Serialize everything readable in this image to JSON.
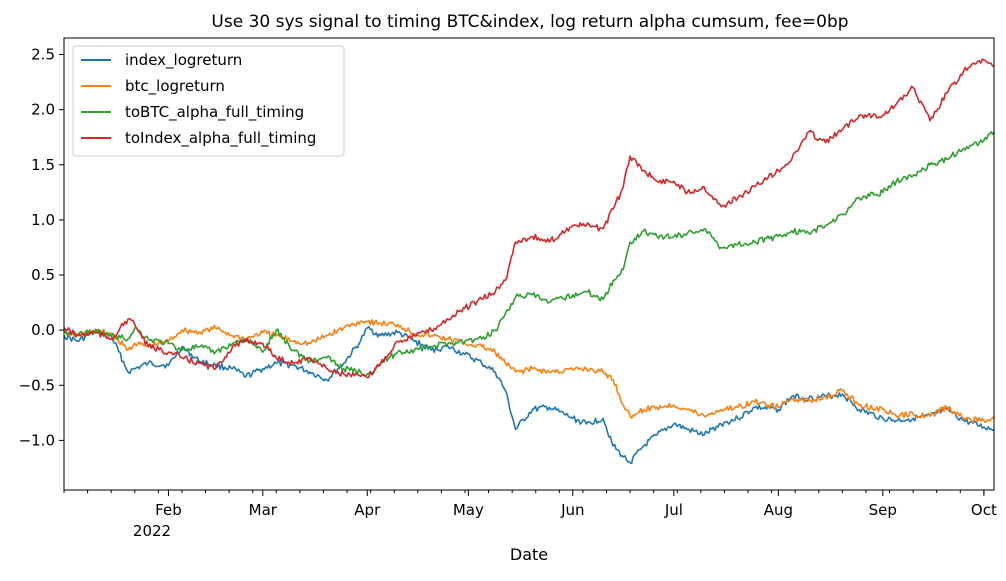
{
  "chart_data": {
    "type": "line",
    "title": "Use 30 sys signal to timing BTC&index, log return alpha cumsum, fee=0bp",
    "xlabel": "Date",
    "ylabel": "",
    "xlim": [
      "2022-01-01",
      "2022-10-04"
    ],
    "ylim": [
      -1.45,
      2.65
    ],
    "yticks": [
      -1.0,
      -0.5,
      0.0,
      0.5,
      1.0,
      1.5,
      2.0,
      2.5
    ],
    "ytick_labels": [
      "−1.0",
      "−0.5",
      "0.0",
      "0.5",
      "1.0",
      "1.5",
      "2.0",
      "2.5"
    ],
    "xticks": [
      "2022-02-01",
      "2022-03-01",
      "2022-04-01",
      "2022-05-01",
      "2022-06-01",
      "2022-07-01",
      "2022-08-01",
      "2022-09-01",
      "2022-10-01"
    ],
    "xtick_labels": [
      "Feb",
      "Mar",
      "Apr",
      "May",
      "Jun",
      "Jul",
      "Aug",
      "Sep",
      "Oct"
    ],
    "xtick_year_label": "2022",
    "legend_position": "upper-left",
    "grid": false,
    "series": [
      {
        "name": "index_logreturn",
        "color": "#1f77b4",
        "x": [
          "2022-01-01",
          "2022-01-05",
          "2022-01-10",
          "2022-01-15",
          "2022-01-20",
          "2022-01-22",
          "2022-01-26",
          "2022-02-01",
          "2022-02-05",
          "2022-02-10",
          "2022-02-15",
          "2022-02-20",
          "2022-02-24",
          "2022-03-01",
          "2022-03-05",
          "2022-03-10",
          "2022-03-15",
          "2022-03-20",
          "2022-03-25",
          "2022-03-30",
          "2022-04-01",
          "2022-04-05",
          "2022-04-10",
          "2022-04-15",
          "2022-04-20",
          "2022-04-25",
          "2022-04-30",
          "2022-05-05",
          "2022-05-09",
          "2022-05-12",
          "2022-05-15",
          "2022-05-20",
          "2022-05-25",
          "2022-06-01",
          "2022-06-05",
          "2022-06-10",
          "2022-06-13",
          "2022-06-16",
          "2022-06-18",
          "2022-06-22",
          "2022-06-26",
          "2022-07-01",
          "2022-07-05",
          "2022-07-10",
          "2022-07-15",
          "2022-07-20",
          "2022-07-25",
          "2022-08-01",
          "2022-08-05",
          "2022-08-10",
          "2022-08-15",
          "2022-08-20",
          "2022-08-25",
          "2022-09-01",
          "2022-09-05",
          "2022-09-10",
          "2022-09-15",
          "2022-09-20",
          "2022-09-25",
          "2022-10-01",
          "2022-10-04"
        ],
        "values": [
          -0.05,
          -0.1,
          -0.02,
          -0.05,
          -0.38,
          -0.35,
          -0.3,
          -0.32,
          -0.15,
          -0.28,
          -0.32,
          -0.35,
          -0.42,
          -0.35,
          -0.3,
          -0.32,
          -0.38,
          -0.45,
          -0.3,
          -0.1,
          0.02,
          -0.05,
          -0.02,
          -0.1,
          -0.18,
          -0.15,
          -0.22,
          -0.3,
          -0.38,
          -0.55,
          -0.9,
          -0.72,
          -0.7,
          -0.8,
          -0.85,
          -0.8,
          -1.05,
          -1.15,
          -1.2,
          -1.05,
          -0.95,
          -0.85,
          -0.9,
          -0.95,
          -0.85,
          -0.8,
          -0.7,
          -0.72,
          -0.6,
          -0.62,
          -0.6,
          -0.58,
          -0.72,
          -0.8,
          -0.82,
          -0.8,
          -0.78,
          -0.72,
          -0.82,
          -0.88,
          -0.9
        ]
      },
      {
        "name": "btc_logreturn",
        "color": "#ff7f0e",
        "x": [
          "2022-01-01",
          "2022-01-05",
          "2022-01-10",
          "2022-01-15",
          "2022-01-20",
          "2022-01-22",
          "2022-01-26",
          "2022-02-01",
          "2022-02-05",
          "2022-02-10",
          "2022-02-15",
          "2022-02-20",
          "2022-02-24",
          "2022-03-01",
          "2022-03-05",
          "2022-03-10",
          "2022-03-15",
          "2022-03-20",
          "2022-03-25",
          "2022-03-30",
          "2022-04-01",
          "2022-04-05",
          "2022-04-10",
          "2022-04-15",
          "2022-04-20",
          "2022-04-25",
          "2022-04-30",
          "2022-05-05",
          "2022-05-09",
          "2022-05-12",
          "2022-05-15",
          "2022-05-20",
          "2022-05-25",
          "2022-06-01",
          "2022-06-05",
          "2022-06-10",
          "2022-06-13",
          "2022-06-16",
          "2022-06-18",
          "2022-06-22",
          "2022-06-26",
          "2022-07-01",
          "2022-07-05",
          "2022-07-10",
          "2022-07-15",
          "2022-07-20",
          "2022-07-25",
          "2022-08-01",
          "2022-08-05",
          "2022-08-10",
          "2022-08-15",
          "2022-08-20",
          "2022-08-25",
          "2022-09-01",
          "2022-09-05",
          "2022-09-10",
          "2022-09-15",
          "2022-09-20",
          "2022-09-25",
          "2022-10-01",
          "2022-10-04"
        ],
        "values": [
          -0.02,
          -0.05,
          -0.01,
          -0.03,
          -0.18,
          -0.12,
          -0.15,
          -0.1,
          0.0,
          -0.02,
          0.02,
          -0.05,
          -0.08,
          -0.02,
          -0.05,
          -0.1,
          -0.12,
          -0.05,
          0.02,
          0.08,
          0.08,
          0.06,
          0.05,
          -0.03,
          -0.05,
          -0.08,
          -0.12,
          -0.15,
          -0.2,
          -0.3,
          -0.38,
          -0.35,
          -0.38,
          -0.36,
          -0.35,
          -0.38,
          -0.45,
          -0.68,
          -0.78,
          -0.72,
          -0.7,
          -0.68,
          -0.72,
          -0.78,
          -0.72,
          -0.7,
          -0.65,
          -0.7,
          -0.62,
          -0.64,
          -0.6,
          -0.55,
          -0.68,
          -0.72,
          -0.78,
          -0.76,
          -0.78,
          -0.7,
          -0.8,
          -0.82,
          -0.78
        ]
      },
      {
        "name": "toBTC_alpha_full_timing",
        "color": "#2ca02c",
        "x": [
          "2022-01-01",
          "2022-01-05",
          "2022-01-10",
          "2022-01-15",
          "2022-01-20",
          "2022-01-22",
          "2022-01-26",
          "2022-02-01",
          "2022-02-05",
          "2022-02-10",
          "2022-02-15",
          "2022-02-20",
          "2022-02-24",
          "2022-03-01",
          "2022-03-05",
          "2022-03-10",
          "2022-03-15",
          "2022-03-20",
          "2022-03-25",
          "2022-03-30",
          "2022-04-01",
          "2022-04-05",
          "2022-04-10",
          "2022-04-15",
          "2022-04-20",
          "2022-04-25",
          "2022-04-30",
          "2022-05-05",
          "2022-05-09",
          "2022-05-12",
          "2022-05-15",
          "2022-05-20",
          "2022-05-25",
          "2022-06-01",
          "2022-06-05",
          "2022-06-10",
          "2022-06-13",
          "2022-06-16",
          "2022-06-18",
          "2022-06-22",
          "2022-06-26",
          "2022-07-01",
          "2022-07-05",
          "2022-07-10",
          "2022-07-15",
          "2022-07-20",
          "2022-07-25",
          "2022-08-01",
          "2022-08-05",
          "2022-08-10",
          "2022-08-15",
          "2022-08-20",
          "2022-08-25",
          "2022-09-01",
          "2022-09-05",
          "2022-09-10",
          "2022-09-15",
          "2022-09-20",
          "2022-09-25",
          "2022-10-01",
          "2022-10-04"
        ],
        "values": [
          -0.02,
          -0.04,
          -0.01,
          -0.05,
          -0.08,
          0.02,
          -0.08,
          -0.12,
          -0.18,
          -0.15,
          -0.2,
          -0.12,
          -0.08,
          -0.2,
          0.0,
          -0.18,
          -0.28,
          -0.25,
          -0.35,
          -0.38,
          -0.4,
          -0.3,
          -0.2,
          -0.18,
          -0.15,
          -0.12,
          -0.1,
          -0.08,
          0.0,
          0.15,
          0.3,
          0.32,
          0.25,
          0.32,
          0.35,
          0.28,
          0.45,
          0.55,
          0.8,
          0.9,
          0.85,
          0.85,
          0.88,
          0.92,
          0.75,
          0.78,
          0.8,
          0.85,
          0.9,
          0.88,
          0.95,
          1.05,
          1.2,
          1.25,
          1.35,
          1.4,
          1.5,
          1.55,
          1.65,
          1.72,
          1.8
        ]
      },
      {
        "name": "toIndex_alpha_full_timing",
        "color": "#d62728",
        "x": [
          "2022-01-01",
          "2022-01-05",
          "2022-01-10",
          "2022-01-15",
          "2022-01-20",
          "2022-01-22",
          "2022-01-26",
          "2022-02-01",
          "2022-02-05",
          "2022-02-10",
          "2022-02-15",
          "2022-02-20",
          "2022-02-24",
          "2022-03-01",
          "2022-03-05",
          "2022-03-10",
          "2022-03-15",
          "2022-03-20",
          "2022-03-25",
          "2022-03-30",
          "2022-04-01",
          "2022-04-05",
          "2022-04-10",
          "2022-04-15",
          "2022-04-20",
          "2022-04-25",
          "2022-04-30",
          "2022-05-05",
          "2022-05-09",
          "2022-05-12",
          "2022-05-15",
          "2022-05-20",
          "2022-05-25",
          "2022-06-01",
          "2022-06-05",
          "2022-06-10",
          "2022-06-13",
          "2022-06-16",
          "2022-06-18",
          "2022-06-22",
          "2022-06-26",
          "2022-07-01",
          "2022-07-05",
          "2022-07-10",
          "2022-07-15",
          "2022-07-20",
          "2022-07-25",
          "2022-08-01",
          "2022-08-05",
          "2022-08-10",
          "2022-08-15",
          "2022-08-20",
          "2022-08-25",
          "2022-09-01",
          "2022-09-05",
          "2022-09-10",
          "2022-09-15",
          "2022-09-20",
          "2022-09-25",
          "2022-10-01",
          "2022-10-04"
        ],
        "values": [
          0.02,
          -0.05,
          -0.02,
          -0.08,
          0.1,
          0.05,
          -0.15,
          -0.2,
          -0.25,
          -0.3,
          -0.35,
          -0.15,
          -0.1,
          -0.12,
          -0.25,
          -0.3,
          -0.25,
          -0.35,
          -0.4,
          -0.42,
          -0.43,
          -0.3,
          -0.1,
          -0.05,
          0.0,
          0.1,
          0.2,
          0.28,
          0.35,
          0.45,
          0.8,
          0.85,
          0.8,
          0.95,
          0.95,
          0.92,
          1.1,
          1.3,
          1.58,
          1.45,
          1.35,
          1.35,
          1.25,
          1.3,
          1.12,
          1.2,
          1.3,
          1.45,
          1.55,
          1.8,
          1.7,
          1.82,
          1.95,
          1.95,
          2.05,
          2.2,
          1.9,
          2.15,
          2.35,
          2.45,
          2.4
        ]
      }
    ]
  }
}
